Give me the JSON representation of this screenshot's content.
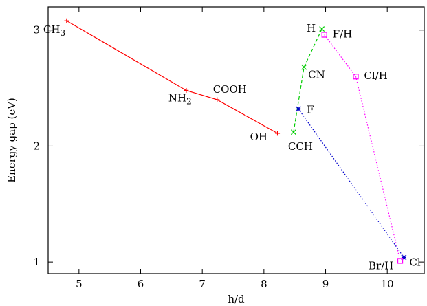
{
  "chart_data": {
    "type": "line",
    "xlabel": "h/d",
    "ylabel": "Energy gap (eV)",
    "xlim": [
      4.5,
      10.6
    ],
    "ylim": [
      0.9,
      3.2
    ],
    "xticks": [
      5,
      6,
      7,
      8,
      9,
      10
    ],
    "yticks": [
      1,
      2,
      3
    ],
    "grid": false,
    "legend": "none",
    "series": [
      {
        "color": "#ff0000",
        "dash": "solid",
        "marker": "plus",
        "points": [
          {
            "x": 4.8,
            "y": 3.08,
            "label": "CH3"
          },
          {
            "x": 6.74,
            "y": 2.48,
            "label": "NH2"
          },
          {
            "x": 7.24,
            "y": 2.4,
            "label": "COOH"
          },
          {
            "x": 8.22,
            "y": 2.11,
            "label": "OH"
          }
        ]
      },
      {
        "color": "#00cc00",
        "dash": "dashed",
        "marker": "x",
        "points": [
          {
            "x": 8.48,
            "y": 2.12,
            "label": "CCH"
          },
          {
            "x": 8.65,
            "y": 2.68,
            "label": "CN"
          },
          {
            "x": 8.94,
            "y": 3.01,
            "label": "H"
          }
        ]
      },
      {
        "color": "#0000cc",
        "dash": "dotted",
        "marker": "star",
        "points": [
          {
            "x": 8.56,
            "y": 2.32,
            "label": "F"
          },
          {
            "x": 10.27,
            "y": 1.04,
            "label": "Cl"
          }
        ]
      },
      {
        "color": "#ff00ff",
        "dash": "dotted",
        "marker": "square",
        "points": [
          {
            "x": 8.98,
            "y": 2.96,
            "label": "F/H"
          },
          {
            "x": 9.49,
            "y": 2.6,
            "label": "Cl/H"
          },
          {
            "x": 10.21,
            "y": 1.01,
            "label": "Br/H"
          }
        ]
      }
    ]
  }
}
